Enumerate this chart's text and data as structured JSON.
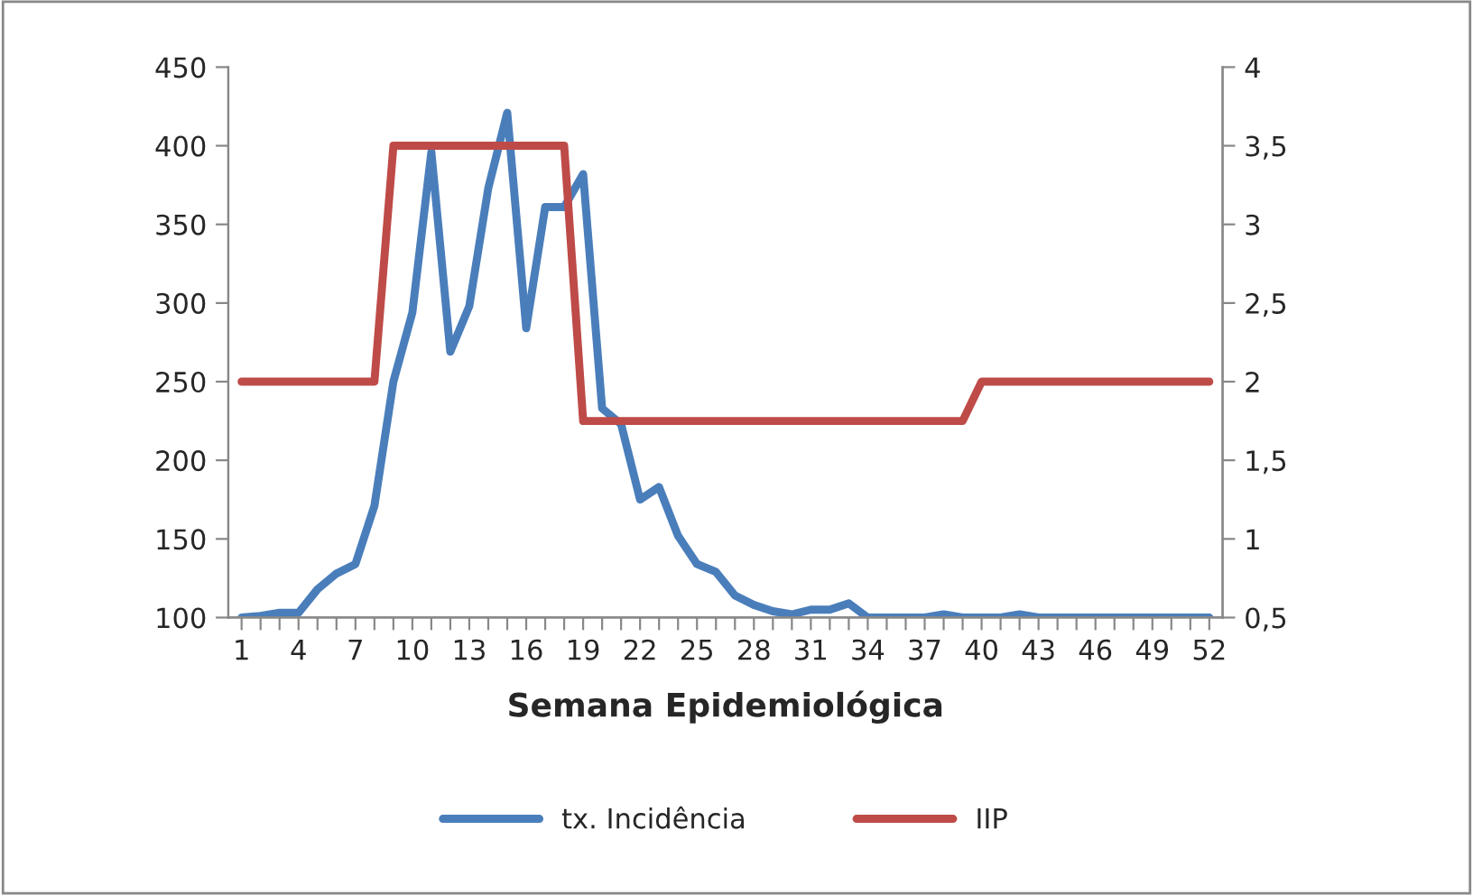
{
  "chart_data": {
    "type": "line",
    "xlabel": "Semana Epidemiológica",
    "categories": [
      "1",
      null,
      null,
      "4",
      null,
      null,
      "7",
      null,
      null,
      "10",
      null,
      null,
      "13",
      null,
      null,
      "16",
      null,
      null,
      "19",
      null,
      null,
      "22",
      null,
      null,
      "25",
      null,
      null,
      "28",
      null,
      null,
      "31",
      null,
      null,
      "34",
      null,
      null,
      "37",
      null,
      null,
      "40",
      null,
      null,
      "43",
      null,
      null,
      "46",
      null,
      null,
      "49",
      null,
      null,
      "52"
    ],
    "series": [
      {
        "name": "tx. Incidência",
        "color": "#4a7ebb",
        "values": [
          100,
          101,
          103,
          103,
          118,
          128,
          134,
          171,
          250,
          294,
          396,
          269,
          298,
          373,
          421,
          284,
          361,
          361,
          382,
          233,
          223,
          175,
          183,
          152,
          134,
          129,
          114,
          108,
          104,
          102,
          105,
          105,
          109,
          100,
          100,
          100,
          100,
          102,
          100,
          100,
          100,
          102,
          100,
          100,
          100,
          100,
          100,
          100,
          100,
          100,
          100,
          100
        ]
      },
      {
        "name": "IIP",
        "color": "#be4b48",
        "axis": "y2",
        "values": [
          2,
          2,
          2,
          2,
          2,
          2,
          2,
          2,
          3.5,
          3.5,
          3.5,
          3.5,
          3.5,
          3.5,
          3.5,
          3.5,
          3.5,
          3.5,
          1.75,
          1.75,
          1.75,
          1.75,
          1.75,
          1.75,
          1.75,
          1.75,
          1.75,
          1.75,
          1.75,
          1.75,
          1.75,
          1.75,
          1.75,
          1.75,
          1.75,
          1.75,
          1.75,
          1.75,
          1.75,
          2,
          2,
          2,
          2,
          2,
          2,
          2,
          2,
          2,
          2,
          2,
          2,
          2
        ]
      }
    ],
    "ylim": [
      100,
      450
    ],
    "yticks": [
      100,
      150,
      200,
      250,
      300,
      350,
      400,
      450
    ],
    "y2lim": [
      0.5,
      4
    ],
    "y2ticks": [
      {
        "value": 0.5,
        "label": "0,5"
      },
      1,
      {
        "value": 1.5,
        "label": "1,5"
      },
      2,
      {
        "value": 2.5,
        "label": "2,5"
      },
      3,
      {
        "value": 3.5,
        "label": "3,5"
      },
      4
    ],
    "legend": "bottom",
    "grid": false,
    "marker": "none",
    "line_style": "solid"
  }
}
